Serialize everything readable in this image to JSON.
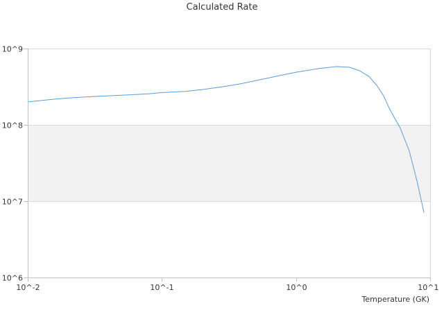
{
  "chart_data": {
    "type": "line",
    "title": "Calculated Rate",
    "xlabel": "Temperature (GK)",
    "ylabel": "",
    "x_scale": "log",
    "y_scale": "log",
    "xlim": [
      0.01,
      10
    ],
    "ylim": [
      1000000,
      1000000000
    ],
    "x_tick_labels": [
      "10^-2",
      "10^-1",
      "10^0",
      "10^1"
    ],
    "y_tick_labels": [
      "10^9",
      "10^8",
      "10^7",
      "10^6"
    ],
    "grid": true,
    "alternating_band_color": "#f2f2f2",
    "series": [
      {
        "color": "#5b9bd5",
        "x": [
          0.01,
          0.015,
          0.02,
          0.03,
          0.05,
          0.08,
          0.1,
          0.15,
          0.2,
          0.3,
          0.4,
          0.5,
          0.7,
          1.0,
          1.5,
          2.0,
          2.5,
          3.0,
          3.5,
          4.0,
          4.5,
          5.0,
          6.0,
          7.0,
          8.0,
          9.0
        ],
        "y": [
          200000000,
          215000000,
          225000000,
          235000000,
          245000000,
          255000000,
          265000000,
          275000000,
          290000000,
          320000000,
          350000000,
          380000000,
          430000000,
          490000000,
          550000000,
          580000000,
          570000000,
          510000000,
          430000000,
          330000000,
          240000000,
          160000000,
          90000000,
          45000000,
          18000000,
          7000000
        ]
      }
    ]
  }
}
